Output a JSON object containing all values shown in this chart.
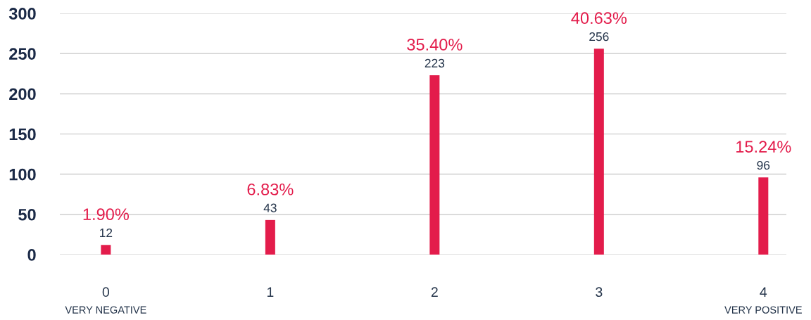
{
  "chart_data": {
    "type": "bar",
    "categories": [
      "0",
      "1",
      "2",
      "3",
      "4"
    ],
    "values": [
      12,
      43,
      223,
      256,
      96
    ],
    "color": "#e31c4b",
    "data_labels": true,
    "ylim": [
      0,
      300
    ],
    "yticks": [
      0,
      50,
      100,
      150,
      200,
      250,
      300
    ],
    "grid": "y",
    "annotations": [
      {
        "text": "1.90%",
        "x": "0",
        "y": 12
      },
      {
        "text": "6.83%",
        "x": "1",
        "y": 43
      },
      {
        "text": "35.40%",
        "x": "2",
        "y": 223
      },
      {
        "text": "40.63%",
        "x": "3",
        "y": 256
      },
      {
        "text": "15.24%",
        "x": "4",
        "y": 96
      },
      "VERY NEGATIVE",
      "VERY POSITIVE"
    ]
  }
}
